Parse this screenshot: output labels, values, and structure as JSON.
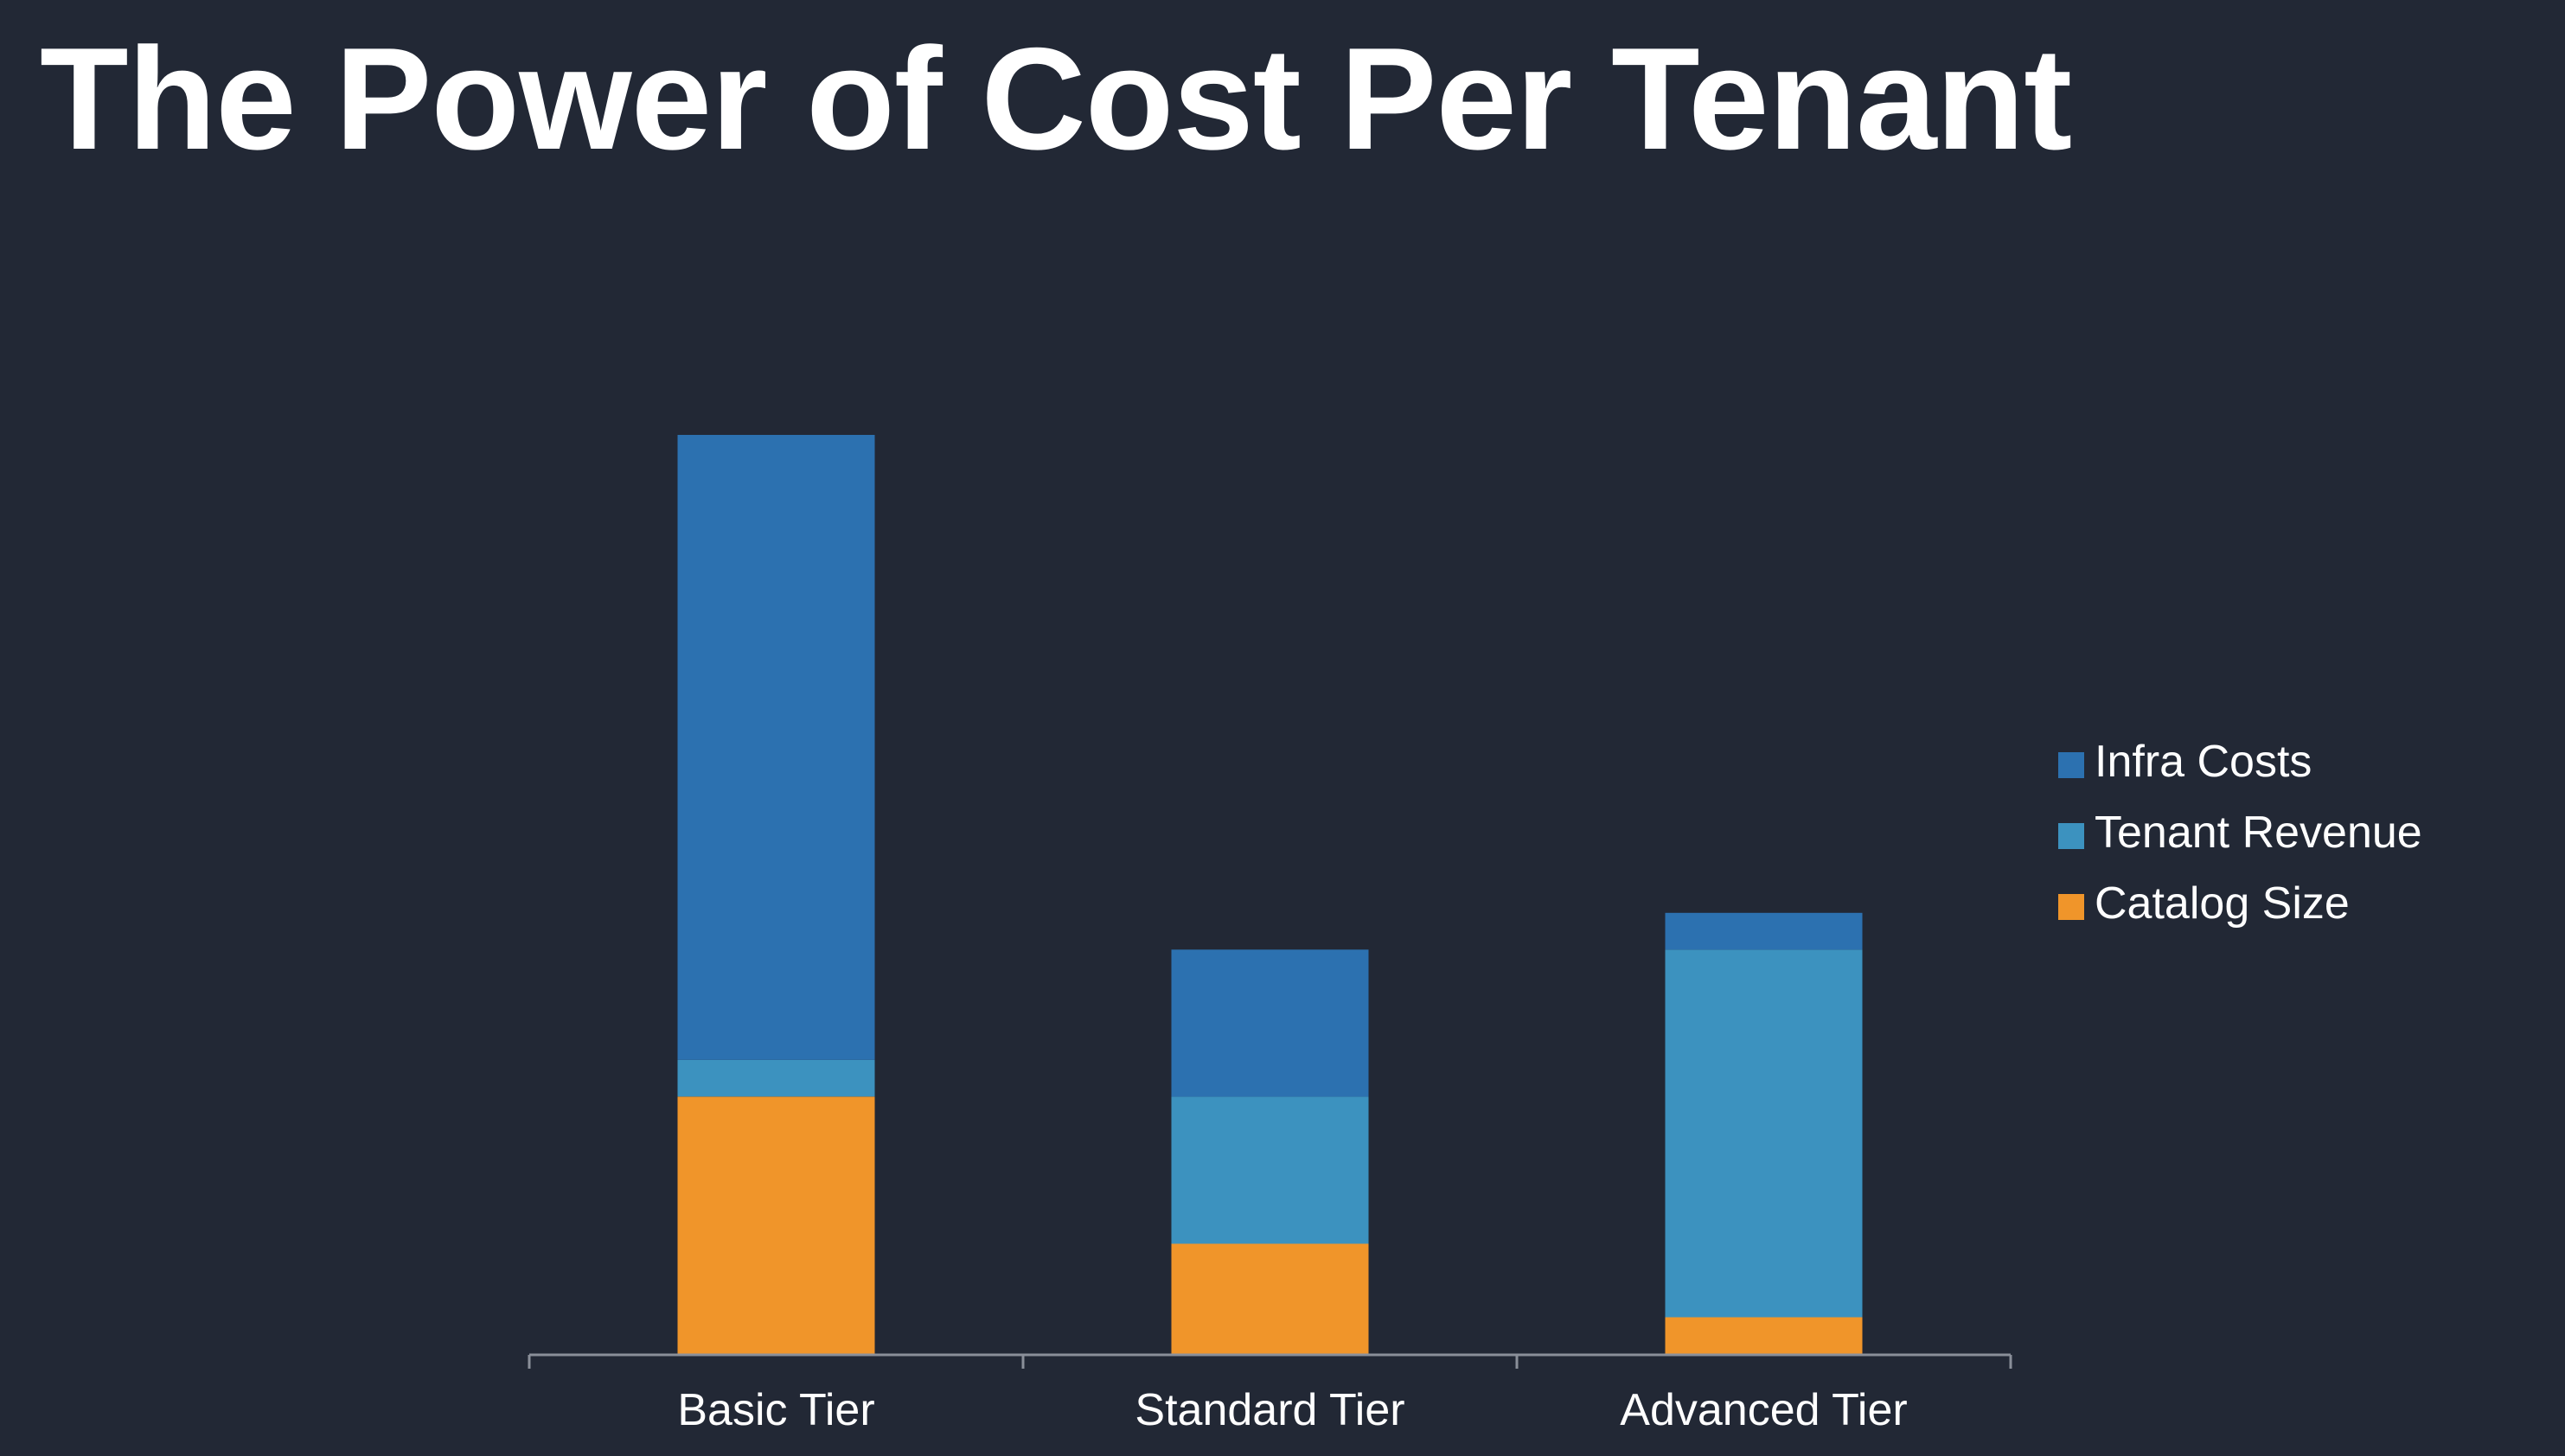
{
  "title": "The Power of Cost Per Tenant",
  "chart_data": {
    "type": "bar",
    "stacked": true,
    "title": "",
    "xlabel": "",
    "ylabel": "",
    "categories": [
      "Basic Tier",
      "Standard Tier",
      "Advanced Tier"
    ],
    "series": [
      {
        "name": "Catalog Size",
        "color": "#F0952A",
        "values": [
          7,
          3,
          1
        ]
      },
      {
        "name": "Tenant Revenue",
        "color": "#3C92BF",
        "values": [
          1,
          4,
          10
        ]
      },
      {
        "name": "Infra Costs",
        "color": "#2C71B0",
        "values": [
          17,
          4,
          1
        ]
      }
    ],
    "legend_order": [
      "Infra Costs",
      "Tenant Revenue",
      "Catalog Size"
    ],
    "ylim": [
      0,
      25
    ],
    "grid": false,
    "legend_position": "right",
    "y_axis_visible": false,
    "axis_color": "#8A8F99",
    "background": "#222835"
  }
}
